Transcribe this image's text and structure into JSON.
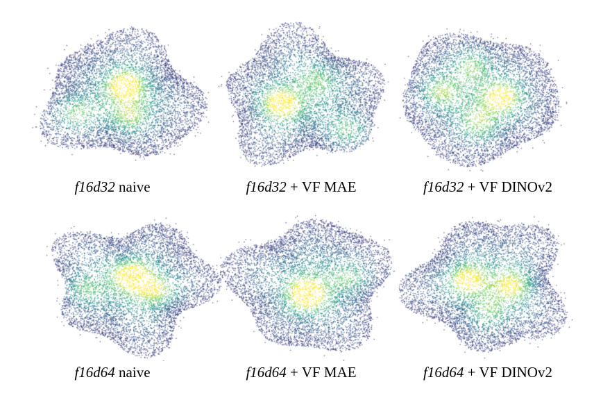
{
  "panels": [
    {
      "model": "f16d32",
      "variant": "naive"
    },
    {
      "model": "f16d32",
      "variant": "+ VF MAE"
    },
    {
      "model": "f16d32",
      "variant": "+ VF DINOv2"
    },
    {
      "model": "f16d64",
      "variant": "naive"
    },
    {
      "model": "f16d64",
      "variant": "+ VF MAE"
    },
    {
      "model": "f16d64",
      "variant": "+ VF DINOv2"
    }
  ],
  "colormap": [
    "#440154",
    "#3b528b",
    "#21918c",
    "#5ec962",
    "#fde725"
  ]
}
